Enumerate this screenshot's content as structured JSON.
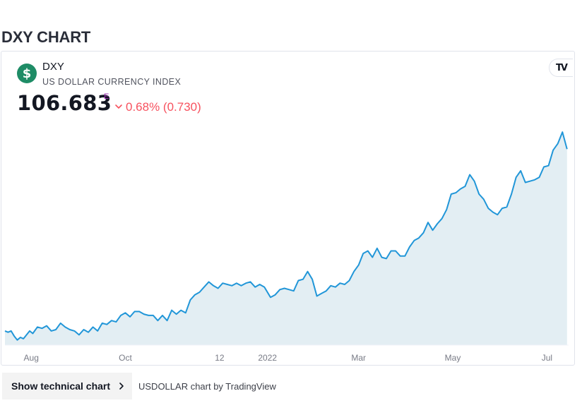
{
  "page": {
    "title": "DXY CHART"
  },
  "widget": {
    "symbol": "DXY",
    "description": "US DOLLAR CURRENCY INDEX",
    "logo_glyph": "$",
    "logo_color": "#1e8c66",
    "tv_logo_text": "TV",
    "price": "106.683",
    "price_flag": "E",
    "change": "0.68% (0.730)",
    "change_direction": "down",
    "change_color": "#f7525f"
  },
  "chart_data": {
    "type": "area",
    "title": "",
    "xlabel": "",
    "ylabel": "",
    "line_color": "#2196d8",
    "fill_color": "#e3eef3",
    "grid": false,
    "x_ticks": [
      "Aug",
      "Oct",
      "12",
      "2022",
      "Mar",
      "May",
      "Jul"
    ],
    "x_tick_positions": [
      "2021-08-01",
      "2021-10-01",
      "2021-12-01",
      "2022-01-01",
      "2022-03-01",
      "2022-05-01",
      "2022-07-01"
    ],
    "x_range": [
      "2021-07-15",
      "2022-07-15"
    ],
    "ylim": [
      91.5,
      108.5
    ],
    "series": [
      {
        "x": [
          "2021-07-15",
          "2021-07-17",
          "2021-07-19",
          "2021-07-21",
          "2021-07-23",
          "2021-07-25",
          "2021-07-27",
          "2021-07-29",
          "2021-07-31",
          "2021-08-02",
          "2021-08-05",
          "2021-08-08",
          "2021-08-11",
          "2021-08-14",
          "2021-08-17",
          "2021-08-20",
          "2021-08-23",
          "2021-08-26",
          "2021-08-29",
          "2021-09-01",
          "2021-09-04",
          "2021-09-07",
          "2021-09-10",
          "2021-09-13",
          "2021-09-16",
          "2021-09-19",
          "2021-09-22",
          "2021-09-25",
          "2021-09-28",
          "2021-10-01",
          "2021-10-04",
          "2021-10-07",
          "2021-10-10",
          "2021-10-13",
          "2021-10-16",
          "2021-10-19",
          "2021-10-22",
          "2021-10-25",
          "2021-10-28",
          "2021-10-31",
          "2021-11-03",
          "2021-11-06",
          "2021-11-09",
          "2021-11-12",
          "2021-11-15",
          "2021-11-18",
          "2021-11-21",
          "2021-11-24",
          "2021-11-27",
          "2021-11-30",
          "2021-12-03",
          "2021-12-06",
          "2021-12-09",
          "2021-12-12",
          "2021-12-15",
          "2021-12-18",
          "2021-12-21",
          "2021-12-24",
          "2021-12-27",
          "2021-12-30",
          "2022-01-03",
          "2022-01-06",
          "2022-01-09",
          "2022-01-12",
          "2022-01-15",
          "2022-01-18",
          "2022-01-21",
          "2022-01-24",
          "2022-01-27",
          "2022-01-30",
          "2022-02-02",
          "2022-02-05",
          "2022-02-08",
          "2022-02-11",
          "2022-02-14",
          "2022-02-17",
          "2022-02-20",
          "2022-02-23",
          "2022-02-26",
          "2022-03-01",
          "2022-03-04",
          "2022-03-07",
          "2022-03-10",
          "2022-03-13",
          "2022-03-16",
          "2022-03-19",
          "2022-03-22",
          "2022-03-25",
          "2022-03-28",
          "2022-03-31",
          "2022-04-03",
          "2022-04-06",
          "2022-04-09",
          "2022-04-12",
          "2022-04-15",
          "2022-04-18",
          "2022-04-21",
          "2022-04-24",
          "2022-04-27",
          "2022-04-30",
          "2022-05-03",
          "2022-05-06",
          "2022-05-09",
          "2022-05-12",
          "2022-05-15",
          "2022-05-18",
          "2022-05-21",
          "2022-05-24",
          "2022-05-27",
          "2022-05-30",
          "2022-06-02",
          "2022-06-05",
          "2022-06-08",
          "2022-06-11",
          "2022-06-14",
          "2022-06-17",
          "2022-06-20",
          "2022-06-23",
          "2022-06-26",
          "2022-06-29",
          "2022-07-02",
          "2022-07-05",
          "2022-07-08",
          "2022-07-11",
          "2022-07-14"
        ],
        "y": [
          92.6,
          92.5,
          92.6,
          92.2,
          91.9,
          92.1,
          92.0,
          92.3,
          92.6,
          92.4,
          92.9,
          92.8,
          93.0,
          92.6,
          92.7,
          93.2,
          92.9,
          92.7,
          92.6,
          92.3,
          92.7,
          92.5,
          92.9,
          92.6,
          93.2,
          93.1,
          93.4,
          93.3,
          93.8,
          94.0,
          93.7,
          94.1,
          94.1,
          93.9,
          93.8,
          93.8,
          93.4,
          93.8,
          93.4,
          94.2,
          93.9,
          94.2,
          94.0,
          95.0,
          95.4,
          95.6,
          96.0,
          96.4,
          96.1,
          95.9,
          96.3,
          96.2,
          96.1,
          96.3,
          96.1,
          96.3,
          96.4,
          96.0,
          96.2,
          96.0,
          95.2,
          95.4,
          95.8,
          95.9,
          95.8,
          95.7,
          96.5,
          96.6,
          97.2,
          96.6,
          95.3,
          95.5,
          95.7,
          96.1,
          96.0,
          96.3,
          96.2,
          96.5,
          97.2,
          97.7,
          98.6,
          98.8,
          98.3,
          99.0,
          98.3,
          98.2,
          98.8,
          98.8,
          98.4,
          98.4,
          99.1,
          99.6,
          99.8,
          100.2,
          101.0,
          100.4,
          100.9,
          101.3,
          102.0,
          103.2,
          103.3,
          103.6,
          103.8,
          104.7,
          104.2,
          103.2,
          102.8,
          102.1,
          101.8,
          101.6,
          102.1,
          102.2,
          103.2,
          104.5,
          105.0,
          104.1,
          104.2,
          104.3,
          104.5,
          105.3,
          105.4,
          106.6,
          107.1,
          108.0,
          106.68
        ]
      }
    ]
  },
  "footer": {
    "button_label": "Show technical chart",
    "attribution": "USDOLLAR chart by TradingView"
  }
}
